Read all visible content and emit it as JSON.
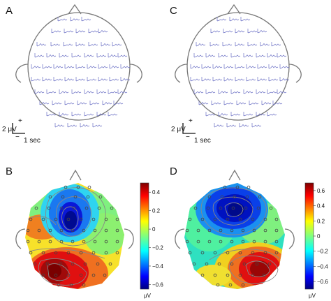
{
  "panels": [
    {
      "id": "A",
      "label": "A",
      "kind": "waveforms"
    },
    {
      "id": "B",
      "label": "B",
      "kind": "topomap"
    },
    {
      "id": "C",
      "label": "C",
      "kind": "waveforms"
    },
    {
      "id": "D",
      "label": "D",
      "kind": "topomap"
    }
  ],
  "scale_bar": {
    "amplitude_label": "2 μV",
    "plus": "+",
    "minus": "−",
    "time_label": "1 sec"
  },
  "colorbar_B": {
    "ticks": [
      "0.4",
      "0.2",
      "0",
      "−0.2",
      "−0.4",
      "−0.6"
    ],
    "unit": "μV",
    "range": [
      -0.65,
      0.5
    ]
  },
  "colorbar_D": {
    "ticks": [
      "0.6",
      "0.4",
      "0.2",
      "0",
      "−0.2",
      "−0.4",
      "−0.6"
    ],
    "unit": "μV",
    "range": [
      -0.7,
      0.7
    ]
  },
  "colors": {
    "waveform": "#6a6fc4",
    "head_outline": "#777777",
    "colormap": "jet"
  }
}
